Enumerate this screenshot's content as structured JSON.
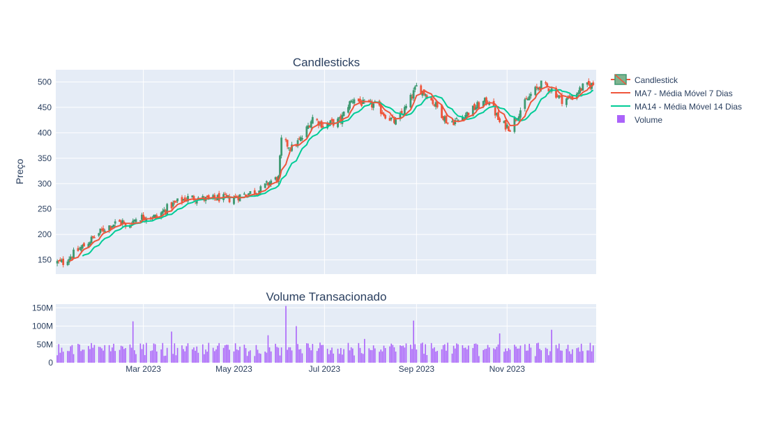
{
  "chart_data": [
    {
      "type": "candlestick",
      "title": "Candlesticks",
      "ylabel": "Preço",
      "xlabel": "",
      "ylim": [
        122,
        524
      ],
      "yticks": [
        150,
        200,
        250,
        300,
        350,
        400,
        450,
        500
      ],
      "grid": true,
      "legend_position": "right",
      "candle_colors": {
        "increasing": "#3D9970",
        "decreasing": "#EF553B"
      },
      "series": [
        {
          "name": "Candlestick",
          "type": "candlestick"
        },
        {
          "name": "MA7 - Média Móvel 7 Dias",
          "type": "line",
          "color": "#EF553B"
        },
        {
          "name": "MA14 - Média Móvel 14 Dias",
          "type": "line",
          "color": "#00CC96"
        }
      ],
      "price_anchors": [
        [
          "2023-01-02",
          145
        ],
        [
          "2023-01-06",
          145
        ],
        [
          "2023-01-12",
          160
        ],
        [
          "2023-01-20",
          178
        ],
        [
          "2023-01-27",
          195
        ],
        [
          "2023-02-03",
          212
        ],
        [
          "2023-02-10",
          222
        ],
        [
          "2023-02-15",
          225
        ],
        [
          "2023-02-17",
          212
        ],
        [
          "2023-02-24",
          232
        ],
        [
          "2023-03-03",
          236
        ],
        [
          "2023-03-10",
          234
        ],
        [
          "2023-03-17",
          252
        ],
        [
          "2023-03-24",
          264
        ],
        [
          "2023-03-31",
          272
        ],
        [
          "2023-04-07",
          272
        ],
        [
          "2023-04-14",
          268
        ],
        [
          "2023-04-21",
          272
        ],
        [
          "2023-04-28",
          270
        ],
        [
          "2023-05-05",
          276
        ],
        [
          "2023-05-12",
          282
        ],
        [
          "2023-05-19",
          288
        ],
        [
          "2023-05-26",
          305
        ],
        [
          "2023-05-31",
          310
        ],
        [
          "2023-06-02",
          385
        ],
        [
          "2023-06-09",
          370
        ],
        [
          "2023-06-16",
          390
        ],
        [
          "2023-06-23",
          430
        ],
        [
          "2023-06-30",
          415
        ],
        [
          "2023-07-07",
          420
        ],
        [
          "2023-07-12",
          425
        ],
        [
          "2023-07-17",
          455
        ],
        [
          "2023-07-21",
          468
        ],
        [
          "2023-07-28",
          455
        ],
        [
          "2023-08-04",
          455
        ],
        [
          "2023-08-11",
          435
        ],
        [
          "2023-08-18",
          420
        ],
        [
          "2023-08-25",
          450
        ],
        [
          "2023-09-01",
          490
        ],
        [
          "2023-09-08",
          475
        ],
        [
          "2023-09-15",
          450
        ],
        [
          "2023-09-22",
          420
        ],
        [
          "2023-09-29",
          425
        ],
        [
          "2023-10-06",
          440
        ],
        [
          "2023-10-13",
          455
        ],
        [
          "2023-10-20",
          465
        ],
        [
          "2023-10-27",
          420
        ],
        [
          "2023-11-03",
          410
        ],
        [
          "2023-11-10",
          445
        ],
        [
          "2023-11-17",
          475
        ],
        [
          "2023-11-24",
          495
        ],
        [
          "2023-12-01",
          485
        ],
        [
          "2023-12-08",
          465
        ],
        [
          "2023-12-15",
          470
        ],
        [
          "2023-12-22",
          490
        ],
        [
          "2023-12-29",
          495
        ]
      ]
    },
    {
      "type": "bar",
      "title": "Volume Transacionado",
      "xlabel": "",
      "ylabel": "",
      "ylim": [
        0,
        160000000
      ],
      "yticks": [
        0,
        50000000,
        100000000,
        150000000
      ],
      "ytick_labels": [
        "0",
        "50M",
        "100M",
        "150M"
      ],
      "grid": true,
      "bar_color": "#AB63FA",
      "series": [
        {
          "name": "Volume",
          "type": "bar"
        }
      ],
      "xlim": [
        "2023-01-01",
        "2023-12-31"
      ],
      "xticks": [
        "2023-03-01",
        "2023-05-01",
        "2023-07-01",
        "2023-09-01",
        "2023-11-01"
      ],
      "xtick_labels": [
        "Mar 2023",
        "May 2023",
        "Jul 2023",
        "Sep 2023",
        "Nov 2023"
      ],
      "volume_spikes": [
        [
          "2023-02-22",
          113000000
        ],
        [
          "2023-03-20",
          85000000
        ],
        [
          "2023-05-24",
          75000000
        ],
        [
          "2023-06-05",
          155000000
        ],
        [
          "2023-06-12",
          100000000
        ],
        [
          "2023-07-28",
          65000000
        ],
        [
          "2023-08-30",
          115000000
        ],
        [
          "2023-10-27",
          80000000
        ],
        [
          "2023-12-01",
          90000000
        ]
      ]
    }
  ],
  "legend": {
    "items": [
      {
        "label": "Candlestick",
        "swatch": "candlestick"
      },
      {
        "label": "MA7 - Média Móvel 7 Dias",
        "swatch": "line",
        "color": "#EF553B"
      },
      {
        "label": "MA14 - Média Móvel 14 Dias",
        "swatch": "line",
        "color": "#00CC96"
      },
      {
        "label": "Volume",
        "swatch": "bar",
        "color": "#AB63FA"
      }
    ]
  }
}
